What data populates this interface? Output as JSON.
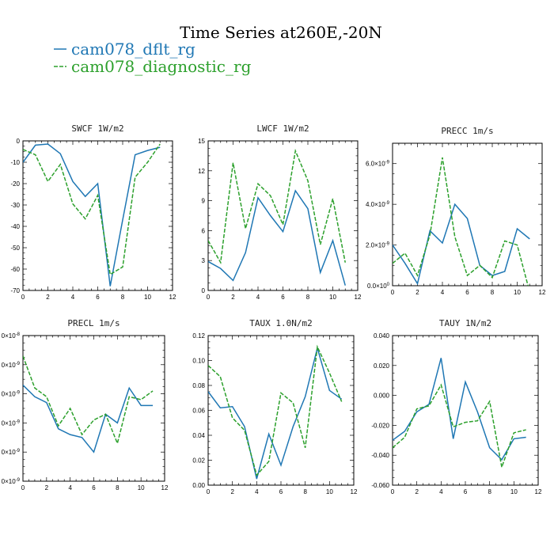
{
  "figure_title": "Time Series at260E,-20N",
  "colors": {
    "dflt": "#1f77b4",
    "diagnostic": "#2ca02c",
    "axes": "#000000"
  },
  "legend": [
    {
      "name": "cam078_dflt_rg",
      "color": "#1f77b4",
      "dashed": false
    },
    {
      "name": "cam078_diagnostic_rg",
      "color": "#2ca02c",
      "dashed": true
    }
  ],
  "chart_data": [
    {
      "type": "line",
      "title": "SWCF   1W/m2",
      "x": [
        0,
        1,
        2,
        3,
        4,
        5,
        6,
        7,
        8,
        9,
        10,
        11
      ],
      "xlim": [
        0,
        12
      ],
      "xticks": [
        "0",
        "2",
        "4",
        "6",
        "8",
        "10",
        "12"
      ],
      "ylim": [
        -70,
        0
      ],
      "yticks": [
        "-70",
        "-60",
        "-50",
        "-40",
        "-30",
        "-20",
        "-10",
        "0"
      ],
      "series": [
        {
          "name": "cam078_dflt_rg",
          "values": [
            -10,
            -2,
            -1.5,
            -6,
            -19,
            -26,
            -20,
            -68,
            -37,
            -6.5,
            -4.5,
            -3
          ]
        },
        {
          "name": "cam078_diagnostic_rg",
          "values": [
            -4,
            -6.5,
            -19,
            -11,
            -29.5,
            -36.5,
            -25.5,
            -62.5,
            -59,
            -17,
            -10,
            -1.5
          ]
        }
      ]
    },
    {
      "type": "line",
      "title": "LWCF   1W/m2",
      "x": [
        0,
        1,
        2,
        3,
        4,
        5,
        6,
        7,
        8,
        9,
        10,
        11
      ],
      "xlim": [
        0,
        12
      ],
      "xticks": [
        "0",
        "2",
        "4",
        "6",
        "8",
        "10",
        "12"
      ],
      "ylim": [
        0,
        15
      ],
      "yticks": [
        "0",
        "3",
        "6",
        "9",
        "12",
        "15"
      ],
      "series": [
        {
          "name": "cam078_dflt_rg",
          "values": [
            2.9,
            2.2,
            1.0,
            3.8,
            9.3,
            7.5,
            5.9,
            10.0,
            8.2,
            1.8,
            5.0,
            0.5
          ]
        },
        {
          "name": "cam078_diagnostic_rg",
          "values": [
            5.0,
            2.8,
            12.8,
            6.2,
            10.7,
            9.5,
            6.6,
            14.0,
            11.0,
            4.6,
            9.2,
            2.8
          ]
        }
      ]
    },
    {
      "type": "line",
      "title": "PRECC   1m/s",
      "x": [
        0,
        1,
        2,
        3,
        4,
        5,
        6,
        7,
        8,
        9,
        10,
        11
      ],
      "xlim": [
        0,
        12
      ],
      "xticks": [
        "0",
        "2",
        "4",
        "6",
        "8",
        "10",
        "12"
      ],
      "ylim": [
        0,
        7e-09
      ],
      "yticks": [
        {
          "mantissa": "0.0×10",
          "exp": "0"
        },
        {
          "mantissa": "2.0×10",
          "exp": "-9"
        },
        {
          "mantissa": "4.0×10",
          "exp": "-9"
        },
        {
          "mantissa": "6.0×10",
          "exp": "-9"
        }
      ],
      "ytick_values": [
        0,
        2e-09,
        4e-09,
        6e-09
      ],
      "series": [
        {
          "name": "cam078_dflt_rg",
          "values": [
            2e-09,
            1.1e-09,
            1e-10,
            2.7e-09,
            2.1e-09,
            4e-09,
            3.3e-09,
            1e-09,
            5e-10,
            7e-10,
            2.8e-09,
            2.3e-09
          ]
        },
        {
          "name": "cam078_diagnostic_rg",
          "values": [
            1.1e-09,
            1.6e-09,
            5e-10,
            2.5e-09,
            6.3e-09,
            2.4e-09,
            5e-10,
            1e-09,
            4e-10,
            2.2e-09,
            2e-09,
            -3e-10
          ]
        }
      ]
    },
    {
      "type": "line",
      "title": "PRECL   1m/s",
      "x": [
        0,
        1,
        2,
        3,
        4,
        5,
        6,
        7,
        8,
        9,
        10,
        11
      ],
      "xlim": [
        0,
        12
      ],
      "xticks": [
        "0",
        "2",
        "4",
        "6",
        "8",
        "10",
        "12"
      ],
      "ylim": [
        0,
        5
      ],
      "yticks": [
        {
          "mantissa": "0×10",
          "exp": "-9"
        },
        {
          "mantissa": "0×10",
          "exp": "-9"
        },
        {
          "mantissa": "0×10",
          "exp": "-9"
        },
        {
          "mantissa": "0×10",
          "exp": "-9"
        },
        {
          "mantissa": "0×10",
          "exp": "-9"
        },
        {
          "mantissa": "0×10",
          "exp": "-8"
        }
      ],
      "ytick_values": [
        0,
        1,
        2,
        3,
        4,
        5
      ],
      "series": [
        {
          "name": "cam078_dflt_rg",
          "values": [
            3.3,
            2.9,
            2.7,
            1.8,
            1.6,
            1.5,
            1.0,
            2.3,
            2.0,
            3.2,
            2.6,
            2.6
          ]
        },
        {
          "name": "cam078_diagnostic_rg",
          "values": [
            4.3,
            3.2,
            2.9,
            1.9,
            2.5,
            1.6,
            2.1,
            2.3,
            1.3,
            2.9,
            2.8,
            3.1
          ]
        }
      ]
    },
    {
      "type": "line",
      "title": "TAUX   1.0N/m2",
      "x": [
        0,
        1,
        2,
        3,
        4,
        5,
        6,
        7,
        8,
        9,
        10,
        11
      ],
      "xlim": [
        0,
        12
      ],
      "xticks": [
        "0",
        "2",
        "4",
        "6",
        "8",
        "10",
        "12"
      ],
      "ylim": [
        0,
        0.12
      ],
      "yticks": [
        "0.00",
        "0.02",
        "0.04",
        "0.06",
        "0.08",
        "0.10",
        "0.12"
      ],
      "series": [
        {
          "name": "cam078_dflt_rg",
          "values": [
            0.075,
            0.062,
            0.063,
            0.047,
            0.005,
            0.041,
            0.016,
            0.047,
            0.071,
            0.11,
            0.076,
            0.069
          ]
        },
        {
          "name": "cam078_diagnostic_rg",
          "values": [
            0.096,
            0.087,
            0.054,
            0.044,
            0.008,
            0.019,
            0.074,
            0.066,
            0.03,
            0.111,
            0.09,
            0.067
          ]
        }
      ]
    },
    {
      "type": "line",
      "title": "TAUY   1N/m2",
      "x": [
        0,
        1,
        2,
        3,
        4,
        5,
        6,
        7,
        8,
        9,
        10,
        11
      ],
      "xlim": [
        0,
        12
      ],
      "xticks": [
        "0",
        "2",
        "4",
        "6",
        "8",
        "10",
        "12"
      ],
      "ylim": [
        -0.06,
        0.04
      ],
      "yticks": [
        "-0.060",
        "-0.040",
        "-0.020",
        "0.000",
        "0.020",
        "0.040"
      ],
      "series": [
        {
          "name": "cam078_dflt_rg",
          "values": [
            -0.03,
            -0.024,
            -0.011,
            -0.006,
            0.025,
            -0.029,
            0.009,
            -0.011,
            -0.035,
            -0.043,
            -0.029,
            -0.028
          ]
        },
        {
          "name": "cam078_diagnostic_rg",
          "values": [
            -0.035,
            -0.028,
            -0.009,
            -0.007,
            0.007,
            -0.021,
            -0.018,
            -0.017,
            -0.004,
            -0.048,
            -0.025,
            -0.023
          ]
        }
      ]
    }
  ]
}
